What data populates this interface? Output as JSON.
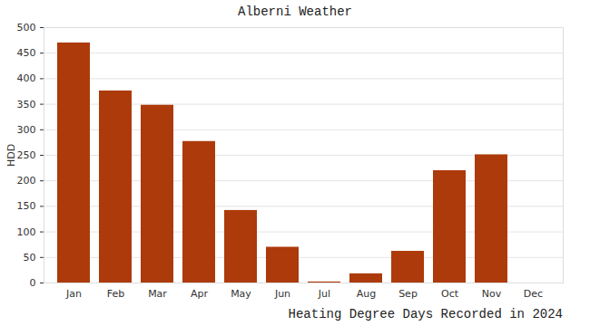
{
  "chart_data": {
    "type": "bar",
    "title": "Alberni Weather",
    "subtitle": "Heating Degree Days Recorded in 2024",
    "y_label": "HDD",
    "categories": [
      "Jan",
      "Feb",
      "Mar",
      "Apr",
      "May",
      "Jun",
      "Jul",
      "Aug",
      "Sep",
      "Oct",
      "Nov",
      "Dec"
    ],
    "values": [
      470,
      376,
      348,
      277,
      142,
      70,
      2,
      18,
      62,
      220,
      251,
      null
    ],
    "color": "#ad3a0a",
    "ylim": [
      0,
      500
    ],
    "yticks": [
      0,
      50,
      100,
      150,
      200,
      250,
      300,
      350,
      400,
      450,
      500
    ],
    "grid": true
  }
}
